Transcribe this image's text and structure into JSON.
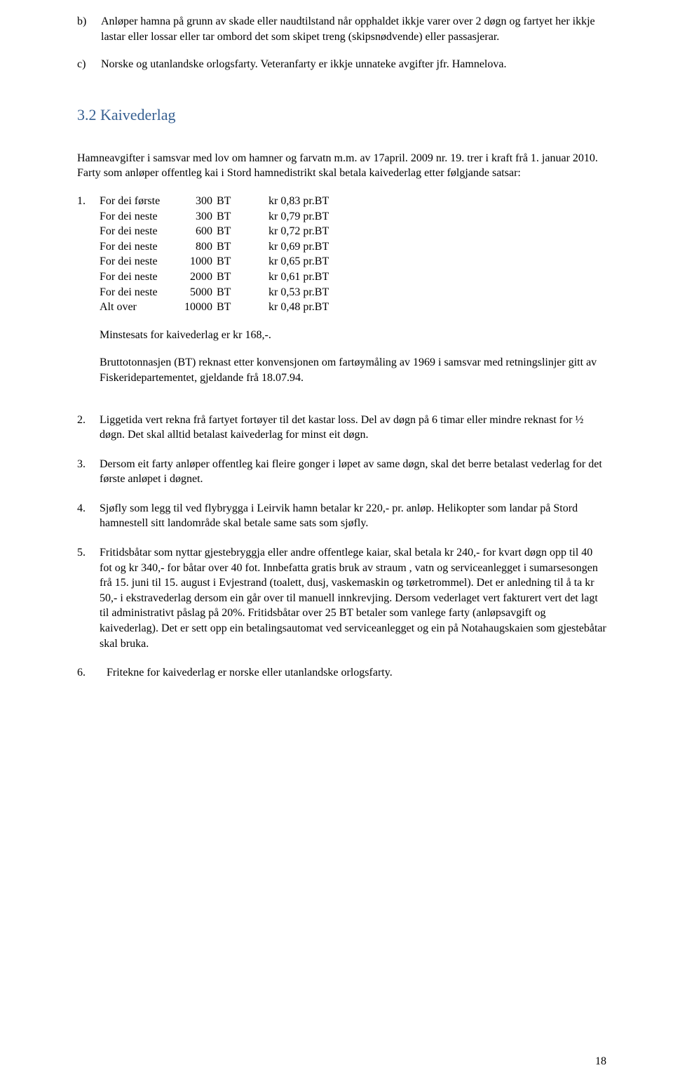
{
  "items_bc": {
    "b_marker": "b)",
    "b_text": "Anløper hamna på grunn av skade eller naudtilstand når opphaldet ikkje varer over 2 døgn og fartyet her ikkje lastar eller lossar eller tar ombord det som skipet treng (skipsnødvende) eller passasjerar.",
    "c_marker": "c)",
    "c_text": "Norske og utanlandske orlogsfarty. Veteranfarty er ikkje unnateke avgifter jfr. Hamnelova."
  },
  "heading": "3.2  Kaivederlag",
  "intro": "Hamneavgifter i samsvar med lov om hamner og farvatn m.m. av 17april. 2009 nr. 19. trer i kraft frå 1. januar 2010. Farty som anløper offentleg kai i Stord hamnedistrikt skal betala kaivederlag etter følgjande satsar:",
  "numbered": {
    "n1_marker": "1.",
    "rates": [
      {
        "c1": "For dei første",
        "c2": "300",
        "c3": "BT",
        "c4": "kr 0,83 pr.BT"
      },
      {
        "c1": "For dei neste",
        "c2": "300",
        "c3": "BT",
        "c4": "kr 0,79 pr.BT"
      },
      {
        "c1": "For dei neste",
        "c2": "600",
        "c3": "BT",
        "c4": "kr 0,72 pr.BT"
      },
      {
        "c1": "For dei neste",
        "c2": "800",
        "c3": "BT",
        "c4": "kr 0,69 pr.BT"
      },
      {
        "c1": "For dei neste",
        "c2": "1000",
        "c3": "BT",
        "c4": "kr 0,65 pr.BT"
      },
      {
        "c1": "For dei neste",
        "c2": "2000",
        "c3": "BT",
        "c4": "kr 0,61 pr.BT"
      },
      {
        "c1": "For dei neste",
        "c2": "5000",
        "c3": "BT",
        "c4": "kr 0,53 pr.BT"
      },
      {
        "c1": "Alt over",
        "c2": "10000",
        "c3": "BT",
        "c4": "kr 0,48 pr.BT"
      }
    ],
    "minste": "Minstesats for kaivederlag er kr 168,-.",
    "brutto": "Bruttotonnasjen (BT) reknast etter konvensjonen om fartøymåling av 1969 i samsvar med retningslinjer gitt av Fiskeridepartementet, gjeldande frå 18.07.94.",
    "n2_marker": "2.",
    "n2_text": "Liggetida vert rekna frå fartyet fortøyer til det kastar loss. Del av døgn på 6 timar eller mindre reknast for ½ døgn. Det skal alltid betalast kaivederlag for minst eit døgn.",
    "n3_marker": "3.",
    "n3_text": "Dersom eit farty anløper offentleg kai fleire gonger i løpet av same døgn, skal det berre betalast vederlag for det første anløpet i døgnet.",
    "n4_marker": "4.",
    "n4_text": "Sjøfly som legg til ved flybrygga i Leirvik hamn betalar kr 220,- pr. anløp. Helikopter som landar på Stord hamnestell sitt landområde skal betale same sats som sjøfly.",
    "n5_marker": " 5.",
    "n5_text": "Fritidsbåtar som nyttar gjestebryggja eller andre offentlege kaiar, skal betala kr 240,- for kvart døgn opp til 40 fot og kr 340,- for båtar over 40 fot. Innbefatta gratis bruk av straum , vatn og serviceanlegget i sumarsesongen frå 15. juni til 15. august i Evjestrand (toalett, dusj, vaskemaskin og  tørketrommel). Det er anledning til å ta kr 50,- i ekstravederlag dersom ein går over til manuell innkrevjing. Dersom vederlaget vert fakturert vert det lagt til administrativt påslag på 20%. Fritidsbåtar over 25 BT betaler som vanlege farty (anløpsavgift og kaivederlag). Det er sett opp ein betalingsautomat ved serviceanlegget og ein på Notahaugskaien som gjestebåtar skal bruka.",
    "n6_marker": "6.",
    "n6_text": "Fritekne for kaivederlag er norske eller utanlandske orlogsfarty."
  },
  "page_number": "18"
}
